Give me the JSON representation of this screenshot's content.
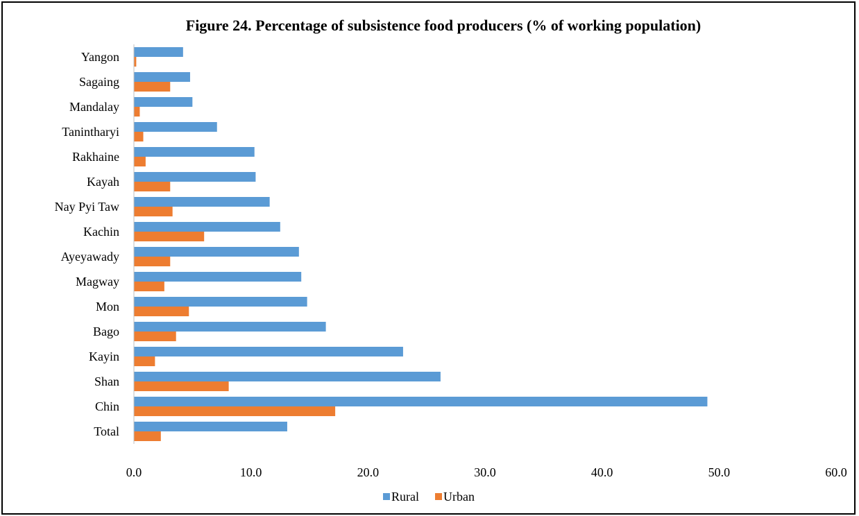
{
  "chart_data": {
    "type": "bar",
    "orientation": "horizontal",
    "title": "Figure 24. Percentage of subsistence food producers (% of working population)",
    "xlabel": "",
    "ylabel": "",
    "categories": [
      "Yangon",
      "Sagaing",
      "Mandalay",
      "Tanintharyi",
      "Rakhaine",
      "Kayah",
      "Nay Pyi Taw",
      "Kachin",
      "Ayeyawady",
      "Magway",
      "Mon",
      "Bago",
      "Kayin",
      "Shan",
      "Chin",
      "Total"
    ],
    "series": [
      {
        "name": "Rural",
        "color": "#5b9bd5",
        "values": [
          4.2,
          4.8,
          5.0,
          7.1,
          10.3,
          10.4,
          11.6,
          12.5,
          14.1,
          14.3,
          14.8,
          16.4,
          23.0,
          26.2,
          49.0,
          13.1
        ]
      },
      {
        "name": "Urban",
        "color": "#ed7d31",
        "values": [
          0.2,
          3.1,
          0.5,
          0.8,
          1.0,
          3.1,
          3.3,
          6.0,
          3.1,
          2.6,
          4.7,
          3.6,
          1.8,
          8.1,
          17.2,
          2.3
        ]
      }
    ],
    "xlim": [
      0,
      60
    ],
    "xticks": [
      "0.0",
      "10.0",
      "20.0",
      "30.0",
      "40.0",
      "50.0",
      "60.0"
    ],
    "grid": false,
    "legend_position": "bottom"
  }
}
